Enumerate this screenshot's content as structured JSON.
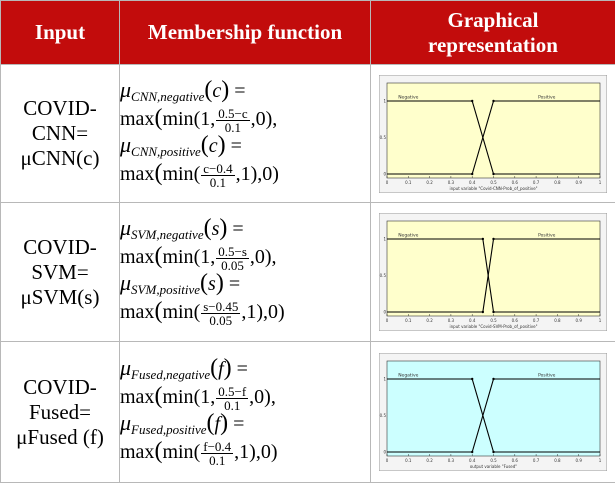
{
  "table": {
    "headers": {
      "input": "Input",
      "fn": "Membership function",
      "graph_line1": "Graphical",
      "graph_line2": "representation"
    },
    "rows": [
      {
        "input": [
          "COVID-",
          "CNN=",
          "μCNN(c)"
        ],
        "neg": {
          "mu": "μ",
          "sub": "CNN,negative",
          "var": "c",
          "eq": "=",
          "max": "max",
          "min": "min",
          "one": "1,",
          "num": "0.5−c",
          "den": "0.1",
          "tail": ",0),",
          "open": "(",
          "close": ")"
        },
        "pos": {
          "mu": "μ",
          "sub": "CNN,positive",
          "var": "c",
          "eq": "=",
          "max": "max",
          "min": "min",
          "num": "c−0.4",
          "den": "0.1",
          "one": ",1),0)",
          "open": "(",
          "close": ")"
        },
        "chart_legend": {
          "neg": "Negative",
          "pos": "Positive"
        },
        "x_label": "input variable \"Covid-CNN-Prob_of_positive\""
      },
      {
        "input": [
          "COVID-",
          "SVM=",
          "μSVM(s)"
        ],
        "neg": {
          "mu": "μ",
          "sub": "SVM,negative",
          "var": "s",
          "eq": "=",
          "max": "max",
          "min": "min",
          "one": "1,",
          "num": "0.5−s",
          "den": "0.05",
          "tail": ",0),",
          "open": "(",
          "close": ")"
        },
        "pos": {
          "mu": "μ",
          "sub": "SVM,positive",
          "var": "s",
          "eq": "=",
          "max": "max",
          "min": "min",
          "num": "s−0.45",
          "den": "0.05",
          "one": ",1),0)",
          "open": "(",
          "close": ")"
        },
        "chart_legend": {
          "neg": "Negative",
          "pos": "Positive"
        },
        "x_label": "input variable \"Covid-SVM-Prob_of_positive\""
      },
      {
        "input": [
          "COVID-",
          "Fused=",
          "μFused (f)"
        ],
        "neg": {
          "mu": "μ",
          "sub": "Fused,negative",
          "var": "f",
          "eq": "=",
          "max": "max",
          "min": "min",
          "one": "1,",
          "num": "0.5−f",
          "den": "0.1",
          "tail": ",0),",
          "open": "(",
          "close": ")"
        },
        "pos": {
          "mu": "μ",
          "sub": "Fused,positive",
          "var": "f",
          "eq": "=",
          "max": "max",
          "min": "min",
          "num": "f−0.4",
          "den": "0.1",
          "one": ",1),0)",
          "open": "(",
          "close": ")"
        },
        "chart_legend": {
          "neg": "Negative",
          "pos": "Positive"
        },
        "x_label": "output variable \"Fused\""
      }
    ]
  },
  "colors": {
    "header_bg": "#c20c0c",
    "plot1_bg": "#ffffcc",
    "plot2_bg": "#ffffcc",
    "plot3_bg": "#ccffff"
  },
  "chart_data": [
    {
      "type": "line",
      "xlim": [
        0,
        1
      ],
      "ylim": [
        0,
        1
      ],
      "x_ticks": [
        "0",
        "0.1",
        "0.2",
        "0.3",
        "0.4",
        "0.5",
        "0.6",
        "0.7",
        "0.8",
        "0.9",
        "1"
      ],
      "y_ticks": [
        "0",
        "0.5",
        "1"
      ],
      "series": [
        {
          "name": "Negative",
          "x": [
            0,
            0.4,
            0.5,
            1
          ],
          "y": [
            1,
            1,
            0,
            0
          ]
        },
        {
          "name": "Positive",
          "x": [
            0,
            0.4,
            0.5,
            1
          ],
          "y": [
            0,
            0,
            1,
            1
          ]
        }
      ]
    },
    {
      "type": "line",
      "xlim": [
        0,
        1
      ],
      "ylim": [
        0,
        1
      ],
      "x_ticks": [
        "0",
        "0.1",
        "0.2",
        "0.3",
        "0.4",
        "0.5",
        "0.6",
        "0.7",
        "0.8",
        "0.9",
        "1"
      ],
      "y_ticks": [
        "0",
        "0.5",
        "1"
      ],
      "series": [
        {
          "name": "Negative",
          "x": [
            0,
            0.45,
            0.5,
            1
          ],
          "y": [
            1,
            1,
            0,
            0
          ]
        },
        {
          "name": "Positive",
          "x": [
            0,
            0.45,
            0.5,
            1
          ],
          "y": [
            0,
            0,
            1,
            1
          ]
        }
      ]
    },
    {
      "type": "line",
      "xlim": [
        0,
        1
      ],
      "ylim": [
        0,
        1
      ],
      "x_ticks": [
        "0",
        "0.1",
        "0.2",
        "0.3",
        "0.4",
        "0.5",
        "0.6",
        "0.7",
        "0.8",
        "0.9",
        "1"
      ],
      "y_ticks": [
        "0",
        "0.5",
        "1"
      ],
      "series": [
        {
          "name": "Negative",
          "x": [
            0,
            0.4,
            0.5,
            1
          ],
          "y": [
            1,
            1,
            0,
            0
          ]
        },
        {
          "name": "Positive",
          "x": [
            0,
            0.4,
            0.5,
            1
          ],
          "y": [
            0,
            0,
            1,
            1
          ]
        }
      ]
    }
  ]
}
